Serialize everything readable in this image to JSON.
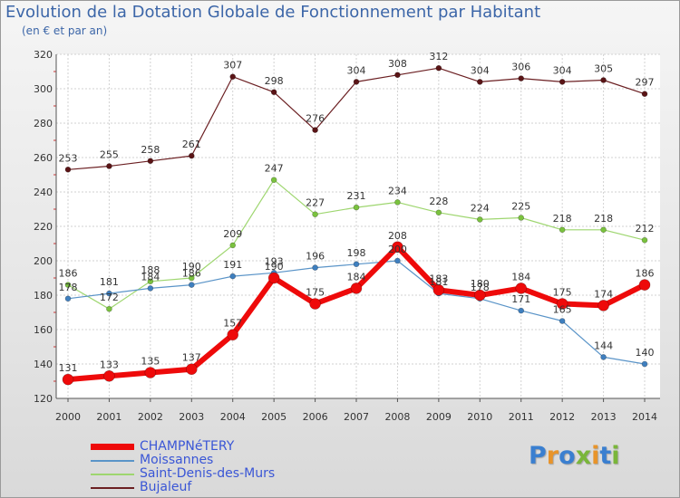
{
  "header": {
    "title": "Evolution de la Dotation Globale de Fonctionnement par Habitant",
    "subtitle": "(en € et par an)"
  },
  "logo": {
    "text": "Proxiti",
    "letter_colors": [
      "#3a7fd0",
      "#e8942a",
      "#3a7fd0",
      "#7ab63a",
      "#e8942a",
      "#3a7fd0",
      "#7ab63a"
    ]
  },
  "chart_data": {
    "type": "line",
    "title": "Evolution de la Dotation Globale de Fonctionnement par Habitant",
    "subtitle": "(en € et par an)",
    "x": [
      "2000",
      "2001",
      "2002",
      "2003",
      "2004",
      "2005",
      "2006",
      "2007",
      "2008",
      "2009",
      "2010",
      "2011",
      "2012",
      "2013",
      "2014"
    ],
    "ylim": [
      120,
      320
    ],
    "yticks": [
      120,
      140,
      160,
      180,
      200,
      220,
      240,
      260,
      280,
      300,
      320
    ],
    "grid": true,
    "legend_position": "bottom-left",
    "series": [
      {
        "name": "Bujaleuf",
        "color": "#6b1f22",
        "marker": "#5a1416",
        "width": 1.2,
        "marker_r": 3,
        "values": [
          253,
          255,
          258,
          261,
          307,
          298,
          276,
          304,
          308,
          312,
          304,
          306,
          304,
          305,
          297
        ]
      },
      {
        "name": "Saint-Denis-des-Murs",
        "color": "#9ed66f",
        "marker": "#7ac23e",
        "width": 1.2,
        "marker_r": 3,
        "values": [
          186,
          172,
          188,
          190,
          209,
          247,
          227,
          231,
          234,
          228,
          224,
          225,
          218,
          218,
          212
        ]
      },
      {
        "name": "Moissannes",
        "color": "#5a94c8",
        "marker": "#3f7fbf",
        "width": 1.2,
        "marker_r": 3,
        "values": [
          178,
          181,
          184,
          186,
          191,
          193,
          196,
          198,
          200,
          181,
          178,
          171,
          165,
          144,
          140
        ]
      },
      {
        "name": "CHAMPNéTERY",
        "color": "#ee0a0a",
        "marker": "#ee0a0a",
        "width": 6,
        "marker_r": 6,
        "values": [
          131,
          133,
          135,
          137,
          157,
          190,
          175,
          184,
          208,
          183,
          180,
          184,
          175,
          174,
          186
        ]
      }
    ],
    "legend_order": [
      "CHAMPNéTERY",
      "Moissannes",
      "Saint-Denis-des-Murs",
      "Bujaleuf"
    ]
  }
}
